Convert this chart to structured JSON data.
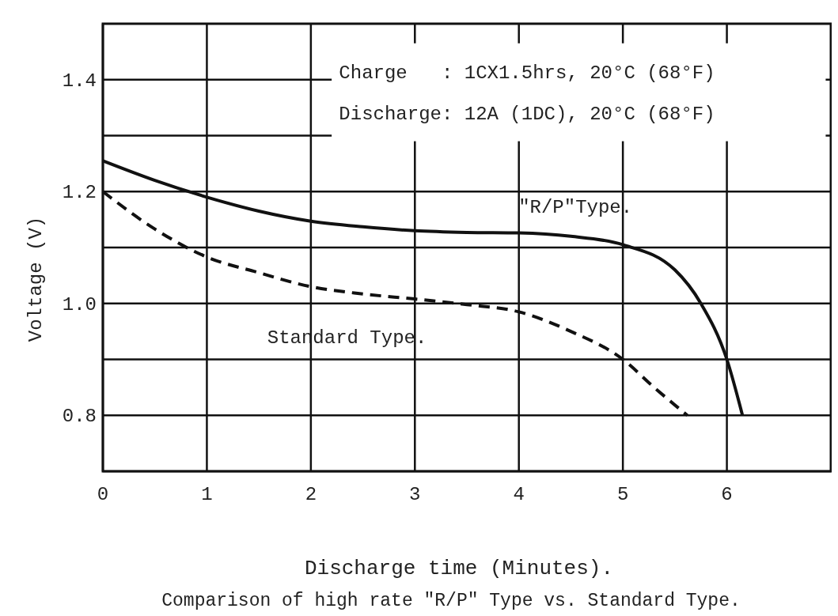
{
  "chart_data": {
    "type": "line",
    "title": "Comparison of high rate \"R/P\" Type vs. Standard Type.",
    "xlabel": "Discharge time (Minutes).",
    "ylabel": "Voltage (V)",
    "annotations": [
      "Charge   : 1CX1.5hrs, 20°C (68°F)",
      "Discharge: 12A (1DC), 20°C (68°F)"
    ],
    "xlim": [
      0,
      7
    ],
    "xticks": [
      0,
      1,
      2,
      3,
      4,
      5,
      6
    ],
    "ylim": [
      0.7,
      1.5
    ],
    "yticks": [
      {
        "value": 0.7,
        "label": null
      },
      0.8,
      {
        "value": 0.9,
        "label": null
      },
      {
        "value": 1.0,
        "label": "1.0"
      },
      {
        "value": 1.1,
        "label": null
      },
      1.2,
      {
        "value": 1.3,
        "label": null
      },
      1.4
    ],
    "grid": true,
    "legend": false,
    "series": [
      {
        "name": "\"R/P\"Type.",
        "color": "#111111",
        "line_style": "solid",
        "x": [
          0,
          0.5,
          1,
          1.5,
          2,
          2.5,
          3,
          3.5,
          4,
          4.5,
          5,
          5.5,
          5.75,
          6,
          6.15
        ],
        "values": [
          1.255,
          1.22,
          1.19,
          1.165,
          1.147,
          1.137,
          1.13,
          1.127,
          1.126,
          1.12,
          1.105,
          1.06,
          1.0,
          0.9,
          0.8
        ]
      },
      {
        "name": "Standard Type.",
        "color": "#111111",
        "line_style": "dashed",
        "x": [
          0,
          0.5,
          1,
          1.5,
          2,
          2.5,
          3,
          3.5,
          4,
          4.5,
          5,
          5.3,
          5.62
        ],
        "values": [
          1.2,
          1.133,
          1.083,
          1.055,
          1.03,
          1.017,
          1.008,
          0.998,
          0.985,
          0.95,
          0.9,
          0.85,
          0.8
        ]
      }
    ]
  }
}
